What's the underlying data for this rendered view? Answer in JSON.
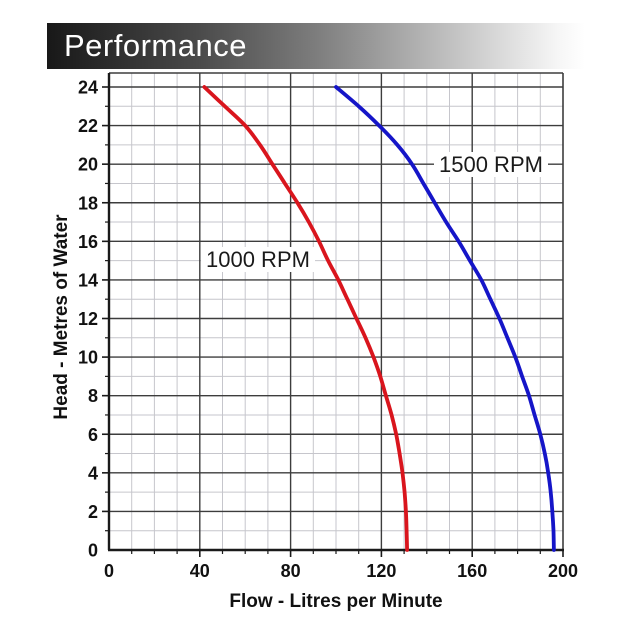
{
  "header": {
    "title": "Performance"
  },
  "chart_data": {
    "type": "line",
    "title": "Performance",
    "xlabel": "Flow - Litres per Minute",
    "ylabel": "Head - Metres of Water",
    "xlim": [
      0,
      200
    ],
    "ylim": [
      0,
      24
    ],
    "x_ticks": [
      0,
      40,
      80,
      120,
      160,
      200
    ],
    "y_ticks": [
      0,
      2,
      4,
      6,
      8,
      10,
      12,
      14,
      16,
      18,
      20,
      22,
      24
    ],
    "x_minor_step": 10,
    "y_minor_step": 1,
    "grid": "on",
    "colors": {
      "curve_red": "#d9151d",
      "curve_blue": "#1515c8",
      "grid_minor": "#c6c6cc",
      "grid_major": "#3d3d3d",
      "axis": "#1a1a1a",
      "text": "#111111"
    },
    "series": [
      {
        "name": "1000 RPM",
        "color": "#d9151d",
        "points": [
          [
            42,
            24
          ],
          [
            51,
            23
          ],
          [
            60,
            22
          ],
          [
            66.5,
            21
          ],
          [
            72,
            20
          ],
          [
            77.5,
            19
          ],
          [
            83,
            18
          ],
          [
            88,
            17
          ],
          [
            92.5,
            16
          ],
          [
            96.5,
            15
          ],
          [
            101,
            14
          ],
          [
            105,
            13
          ],
          [
            109,
            12
          ],
          [
            113,
            11
          ],
          [
            116.5,
            10
          ],
          [
            119.5,
            9
          ],
          [
            122,
            8
          ],
          [
            124.5,
            7
          ],
          [
            126.5,
            6
          ],
          [
            128,
            5
          ],
          [
            129.3,
            4
          ],
          [
            130.2,
            3
          ],
          [
            130.8,
            2
          ],
          [
            131.1,
            1
          ],
          [
            131.3,
            0
          ]
        ]
      },
      {
        "name": "1500 RPM",
        "color": "#1515c8",
        "points": [
          [
            100,
            24
          ],
          [
            110,
            23
          ],
          [
            119,
            22
          ],
          [
            127,
            21
          ],
          [
            133.5,
            20
          ],
          [
            138.5,
            19
          ],
          [
            143.5,
            18
          ],
          [
            148.5,
            17
          ],
          [
            154,
            16
          ],
          [
            159,
            15
          ],
          [
            164,
            14
          ],
          [
            168,
            13
          ],
          [
            172,
            12
          ],
          [
            175.5,
            11
          ],
          [
            179,
            10
          ],
          [
            182,
            9
          ],
          [
            185,
            8
          ],
          [
            187.5,
            7
          ],
          [
            190,
            6
          ],
          [
            192,
            5
          ],
          [
            193.5,
            4
          ],
          [
            194.6,
            3
          ],
          [
            195.3,
            2
          ],
          [
            195.8,
            1
          ],
          [
            196,
            0
          ]
        ]
      }
    ]
  }
}
